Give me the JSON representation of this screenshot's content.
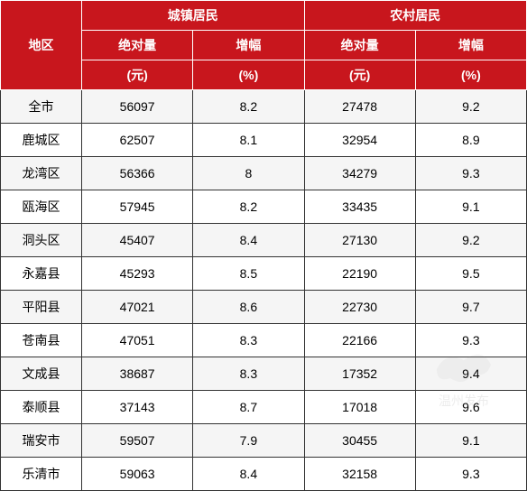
{
  "header": {
    "region_label": "地区",
    "urban_label": "城镇居民",
    "rural_label": "农村居民",
    "absolute_label": "绝对量",
    "growth_label": "增幅",
    "yuan_unit": "(元)",
    "percent_unit": "(%)"
  },
  "colors": {
    "header_bg": "#c8161d",
    "header_text": "#ffffff",
    "border": "#333333",
    "row_odd": "#f5f5f5",
    "row_even": "#ffffff"
  },
  "columns": [
    "地区",
    "城镇居民绝对量(元)",
    "城镇居民增幅(%)",
    "农村居民绝对量(元)",
    "农村居民增幅(%)"
  ],
  "rows": [
    {
      "region": "全市",
      "urban_abs": "56097",
      "urban_growth": "8.2",
      "rural_abs": "27478",
      "rural_growth": "9.2"
    },
    {
      "region": "鹿城区",
      "urban_abs": "62507",
      "urban_growth": "8.1",
      "rural_abs": "32954",
      "rural_growth": "8.9"
    },
    {
      "region": "龙湾区",
      "urban_abs": "56366",
      "urban_growth": "8",
      "rural_abs": "34279",
      "rural_growth": "9.3"
    },
    {
      "region": "瓯海区",
      "urban_abs": "57945",
      "urban_growth": "8.2",
      "rural_abs": "33435",
      "rural_growth": "9.1"
    },
    {
      "region": "洞头区",
      "urban_abs": "45407",
      "urban_growth": "8.4",
      "rural_abs": "27130",
      "rural_growth": "9.2"
    },
    {
      "region": "永嘉县",
      "urban_abs": "45293",
      "urban_growth": "8.5",
      "rural_abs": "22190",
      "rural_growth": "9.5"
    },
    {
      "region": "平阳县",
      "urban_abs": "47021",
      "urban_growth": "8.6",
      "rural_abs": "22730",
      "rural_growth": "9.7"
    },
    {
      "region": "苍南县",
      "urban_abs": "47051",
      "urban_growth": "8.3",
      "rural_abs": "22166",
      "rural_growth": "9.3"
    },
    {
      "region": "文成县",
      "urban_abs": "38687",
      "urban_growth": "8.3",
      "rural_abs": "17352",
      "rural_growth": "9.4"
    },
    {
      "region": "泰顺县",
      "urban_abs": "37143",
      "urban_growth": "8.7",
      "rural_abs": "17018",
      "rural_growth": "9.6"
    },
    {
      "region": "瑞安市",
      "urban_abs": "59507",
      "urban_growth": "7.9",
      "rural_abs": "30455",
      "rural_growth": "9.1"
    },
    {
      "region": "乐清市",
      "urban_abs": "59063",
      "urban_growth": "8.4",
      "rural_abs": "32158",
      "rural_growth": "9.3"
    }
  ],
  "watermark_text": "温州发布"
}
